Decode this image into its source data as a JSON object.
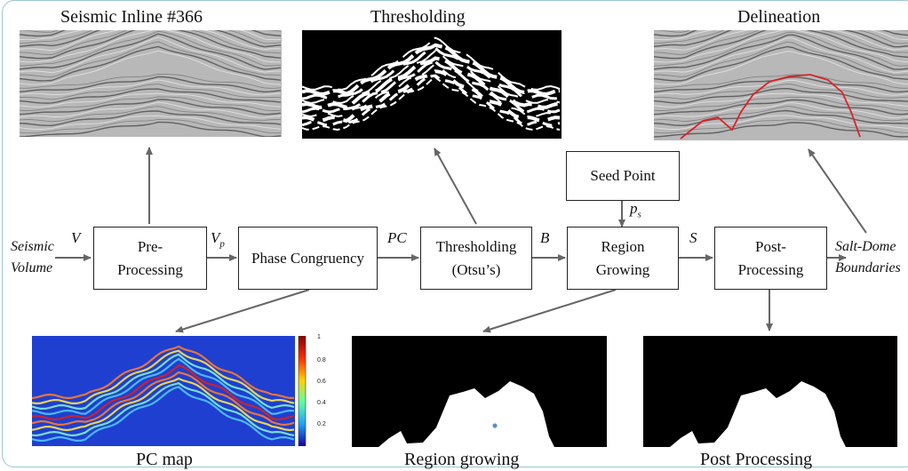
{
  "titles": {
    "seismic": "Seismic Inline #366",
    "thresholding": "Thresholding",
    "delineation": "Delineation",
    "pc_map": "PC map",
    "region_growing": "Region growing",
    "post_processing": "Post Processing"
  },
  "blocks": {
    "preprocessing": [
      "Pre-",
      "Processing"
    ],
    "phase_congruency": "Phase Congruency",
    "thresholding": [
      "Thresholding",
      "(Otsu’s)"
    ],
    "region_growing": [
      "Region",
      "Growing"
    ],
    "post_processing": [
      "Post-",
      "Processing"
    ],
    "seed_point": "Seed Point"
  },
  "signals": {
    "input": [
      "Seismic",
      "Volume"
    ],
    "v": "V",
    "vp": "V",
    "vp_sub": "p",
    "pc": "PC",
    "b": "B",
    "s": "S",
    "ps": "p",
    "ps_sub": "s",
    "output": [
      "Salt-Dome",
      "Boundaries"
    ]
  },
  "colorbar": {
    "ticks": [
      "1",
      "0.8",
      "0.6",
      "0.4",
      "0.2"
    ]
  },
  "colors": {
    "arrow": "#666666",
    "frame": "#9fc3d6",
    "boundary": "#d9232b",
    "seed": "#5b8fc7"
  }
}
